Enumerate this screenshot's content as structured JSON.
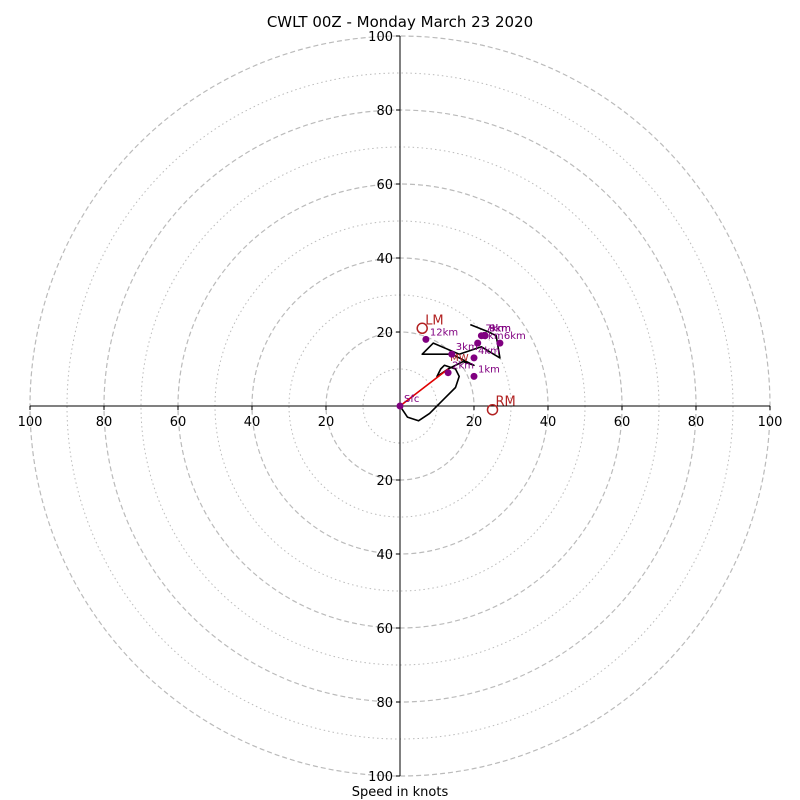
{
  "chart_data": {
    "type": "scatter",
    "subtype": "hodograph",
    "title": "CWLT 00Z - Monday March 23 2020",
    "xlabel": "Speed in knots",
    "ylabel": "",
    "xlim": [
      -100,
      100
    ],
    "ylim": [
      -100,
      100
    ],
    "rings": {
      "dashed": [
        20,
        40,
        60,
        80,
        100
      ],
      "dotted": [
        10,
        30,
        50,
        70,
        90
      ],
      "color": "#bbbbbb"
    },
    "ticks": {
      "right": [
        "20",
        "40",
        "60",
        "80",
        "100"
      ],
      "left": [
        "20",
        "40",
        "60",
        "80",
        "100"
      ],
      "up": [
        "20",
        "40",
        "60",
        "80",
        "100"
      ],
      "down": [
        "20",
        "40",
        "60",
        "80",
        "100"
      ],
      "values": [
        20,
        40,
        60,
        80,
        100
      ]
    },
    "trace": {
      "color": "#000000",
      "points": [
        [
          0,
          0
        ],
        [
          2,
          -3
        ],
        [
          5,
          -4
        ],
        [
          8,
          -2
        ],
        [
          12,
          2
        ],
        [
          15,
          5
        ],
        [
          16,
          8
        ],
        [
          15,
          10
        ],
        [
          12,
          11
        ],
        [
          11,
          10
        ],
        [
          10,
          8
        ],
        [
          13,
          10
        ],
        [
          17,
          12
        ],
        [
          20,
          11
        ],
        [
          14,
          14
        ],
        [
          6,
          14
        ],
        [
          9,
          17
        ],
        [
          16,
          14
        ],
        [
          22,
          16
        ],
        [
          27,
          13
        ],
        [
          26,
          19
        ],
        [
          24,
          20
        ],
        [
          19,
          22
        ]
      ]
    },
    "bunkers_vector": {
      "color": "#e00000",
      "from": [
        0,
        0
      ],
      "to": [
        13,
        10
      ]
    },
    "height_markers": {
      "color": "#800080",
      "points": [
        {
          "label": "Sfc",
          "x": 0,
          "y": 0
        },
        {
          "label": "1km",
          "x": 20,
          "y": 8
        },
        {
          "label": "2km",
          "x": 13,
          "y": 9
        },
        {
          "label": "3km",
          "x": 14,
          "y": 14
        },
        {
          "label": "4km",
          "x": 20,
          "y": 13
        },
        {
          "label": "5km",
          "x": 21,
          "y": 17
        },
        {
          "label": "6km",
          "x": 27,
          "y": 17
        },
        {
          "label": "7km",
          "x": 22,
          "y": 19
        },
        {
          "label": "8km",
          "x": 23,
          "y": 19
        },
        {
          "label": "9km",
          "x": 23,
          "y": 19
        },
        {
          "label": "12km",
          "x": 7,
          "y": 18
        }
      ]
    },
    "storm_motion": {
      "color": "#b22222",
      "points": [
        {
          "label": "LM",
          "x": 6,
          "y": 21
        },
        {
          "label": "RM",
          "x": 25,
          "y": -1
        }
      ]
    },
    "mean_wind_label": "MW"
  }
}
